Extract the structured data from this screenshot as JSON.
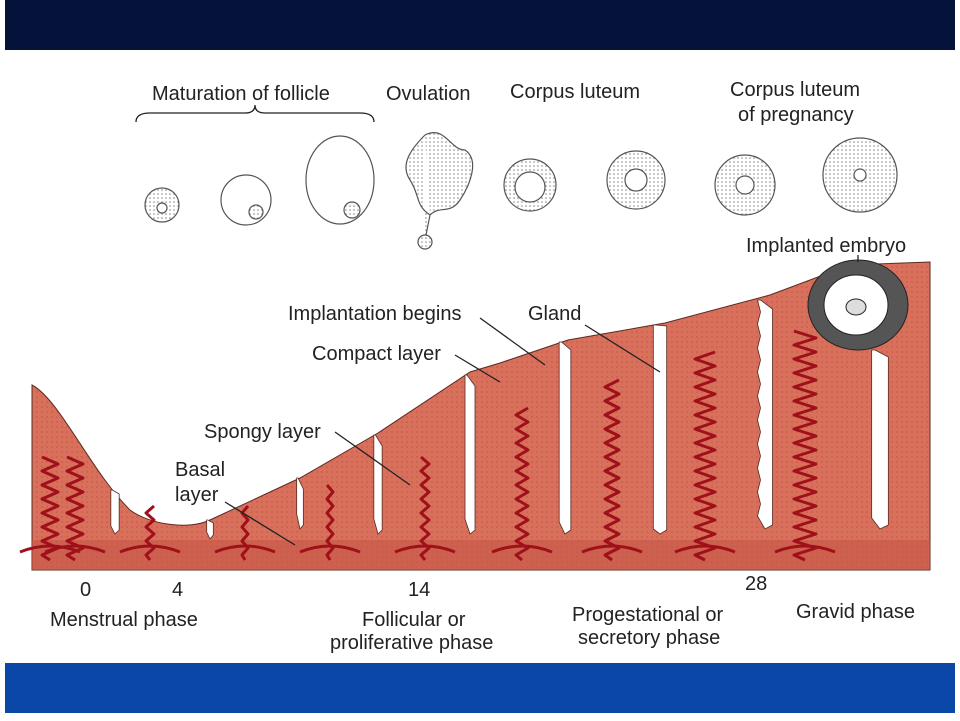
{
  "top_labels": {
    "maturation": "Maturation of follicle",
    "ovulation": "Ovulation",
    "corpus_luteum": "Corpus luteum",
    "corpus_luteum_pregnancy": [
      "Corpus luteum",
      "of pregnancy"
    ]
  },
  "layer_labels": {
    "implanted_embryo": "Implanted embryo",
    "implantation_begins": "Implantation begins",
    "gland": "Gland",
    "compact_layer": "Compact layer",
    "spongy_layer": "Spongy layer",
    "basal_layer": [
      "Basal",
      "layer"
    ]
  },
  "days": [
    "0",
    "4",
    "14",
    "28"
  ],
  "phases": {
    "menstrual": [
      "Menstrual phase"
    ],
    "follicular": [
      "Follicular or",
      "proliferative phase"
    ],
    "progestational": [
      "Progestational or",
      "secretory phase"
    ],
    "gravid": [
      "Gravid phase"
    ]
  }
}
